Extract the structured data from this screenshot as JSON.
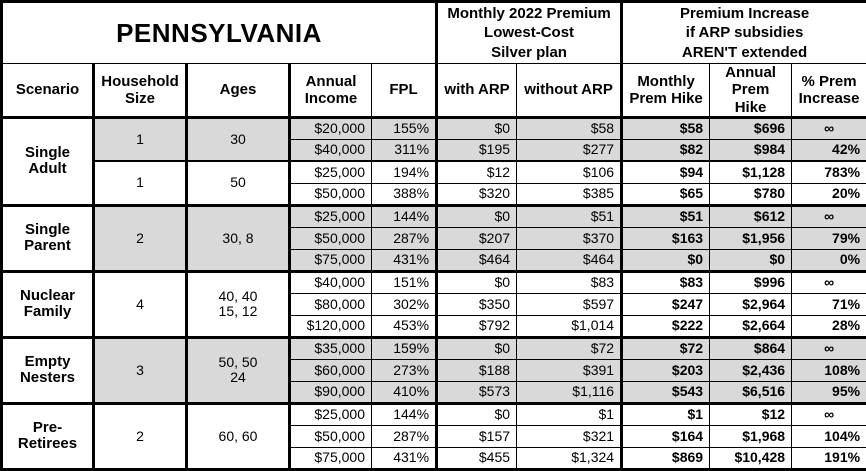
{
  "title": "PENNSYLVANIA",
  "premium_header": "Monthly 2022 Premium\nLowest-Cost\nSilver plan",
  "increase_header": "Premium Increase\nif ARP subsidies\nAREN'T extended",
  "columns": [
    "Scenario",
    "Household\nSize",
    "Ages",
    "Annual\nIncome",
    "FPL",
    "with ARP",
    "without ARP",
    "Monthly\nPrem Hike",
    "Annual\nPrem Hike",
    "% Prem\nIncrease"
  ],
  "colors": {
    "shaded_row": "#d9d9d9",
    "border": "#000000",
    "background": "#ffffff"
  },
  "chart_data": {
    "type": "table",
    "title": "PENNSYLVANIA",
    "column_groups": [
      "Monthly 2022 Premium Lowest-Cost Silver plan",
      "Premium Increase if ARP subsidies AREN'T extended"
    ],
    "columns": [
      "Scenario",
      "Household Size",
      "Ages",
      "Annual Income",
      "FPL",
      "with ARP",
      "without ARP",
      "Monthly Prem Hike",
      "Annual Prem Hike",
      "% Prem Increase"
    ],
    "groups": [
      {
        "scenario": "Single\nAdult",
        "subgroups": [
          {
            "household_size": "1",
            "ages": "30",
            "shaded": true,
            "rows": [
              {
                "income": "$20,000",
                "fpl": "155%",
                "with_arp": "$0",
                "without_arp": "$58",
                "monthly_hike": "$58",
                "annual_hike": "$696",
                "pct_increase": "∞"
              },
              {
                "income": "$40,000",
                "fpl": "311%",
                "with_arp": "$195",
                "without_arp": "$277",
                "monthly_hike": "$82",
                "annual_hike": "$984",
                "pct_increase": "42%"
              }
            ]
          },
          {
            "household_size": "1",
            "ages": "50",
            "shaded": false,
            "rows": [
              {
                "income": "$25,000",
                "fpl": "194%",
                "with_arp": "$12",
                "without_arp": "$106",
                "monthly_hike": "$94",
                "annual_hike": "$1,128",
                "pct_increase": "783%"
              },
              {
                "income": "$50,000",
                "fpl": "388%",
                "with_arp": "$320",
                "without_arp": "$385",
                "monthly_hike": "$65",
                "annual_hike": "$780",
                "pct_increase": "20%"
              }
            ]
          }
        ]
      },
      {
        "scenario": "Single\nParent",
        "subgroups": [
          {
            "household_size": "2",
            "ages": "30, 8",
            "shaded": true,
            "rows": [
              {
                "income": "$25,000",
                "fpl": "144%",
                "with_arp": "$0",
                "without_arp": "$51",
                "monthly_hike": "$51",
                "annual_hike": "$612",
                "pct_increase": "∞"
              },
              {
                "income": "$50,000",
                "fpl": "287%",
                "with_arp": "$207",
                "without_arp": "$370",
                "monthly_hike": "$163",
                "annual_hike": "$1,956",
                "pct_increase": "79%"
              },
              {
                "income": "$75,000",
                "fpl": "431%",
                "with_arp": "$464",
                "without_arp": "$464",
                "monthly_hike": "$0",
                "annual_hike": "$0",
                "pct_increase": "0%"
              }
            ]
          }
        ]
      },
      {
        "scenario": "Nuclear\nFamily",
        "subgroups": [
          {
            "household_size": "4",
            "ages": "40, 40\n15, 12",
            "shaded": false,
            "rows": [
              {
                "income": "$40,000",
                "fpl": "151%",
                "with_arp": "$0",
                "without_arp": "$83",
                "monthly_hike": "$83",
                "annual_hike": "$996",
                "pct_increase": "∞"
              },
              {
                "income": "$80,000",
                "fpl": "302%",
                "with_arp": "$350",
                "without_arp": "$597",
                "monthly_hike": "$247",
                "annual_hike": "$2,964",
                "pct_increase": "71%"
              },
              {
                "income": "$120,000",
                "fpl": "453%",
                "with_arp": "$792",
                "without_arp": "$1,014",
                "monthly_hike": "$222",
                "annual_hike": "$2,664",
                "pct_increase": "28%"
              }
            ]
          }
        ]
      },
      {
        "scenario": "Empty\nNesters",
        "subgroups": [
          {
            "household_size": "3",
            "ages": "50, 50\n24",
            "shaded": true,
            "rows": [
              {
                "income": "$35,000",
                "fpl": "159%",
                "with_arp": "$0",
                "without_arp": "$72",
                "monthly_hike": "$72",
                "annual_hike": "$864",
                "pct_increase": "∞"
              },
              {
                "income": "$60,000",
                "fpl": "273%",
                "with_arp": "$188",
                "without_arp": "$391",
                "monthly_hike": "$203",
                "annual_hike": "$2,436",
                "pct_increase": "108%"
              },
              {
                "income": "$90,000",
                "fpl": "410%",
                "with_arp": "$573",
                "without_arp": "$1,116",
                "monthly_hike": "$543",
                "annual_hike": "$6,516",
                "pct_increase": "95%"
              }
            ]
          }
        ]
      },
      {
        "scenario": "Pre-\nRetirees",
        "subgroups": [
          {
            "household_size": "2",
            "ages": "60, 60",
            "shaded": false,
            "rows": [
              {
                "income": "$25,000",
                "fpl": "144%",
                "with_arp": "$0",
                "without_arp": "$1",
                "monthly_hike": "$1",
                "annual_hike": "$12",
                "pct_increase": "∞"
              },
              {
                "income": "$50,000",
                "fpl": "287%",
                "with_arp": "$157",
                "without_arp": "$321",
                "monthly_hike": "$164",
                "annual_hike": "$1,968",
                "pct_increase": "104%"
              },
              {
                "income": "$75,000",
                "fpl": "431%",
                "with_arp": "$455",
                "without_arp": "$1,324",
                "monthly_hike": "$869",
                "annual_hike": "$10,428",
                "pct_increase": "191%"
              }
            ]
          }
        ]
      }
    ]
  }
}
